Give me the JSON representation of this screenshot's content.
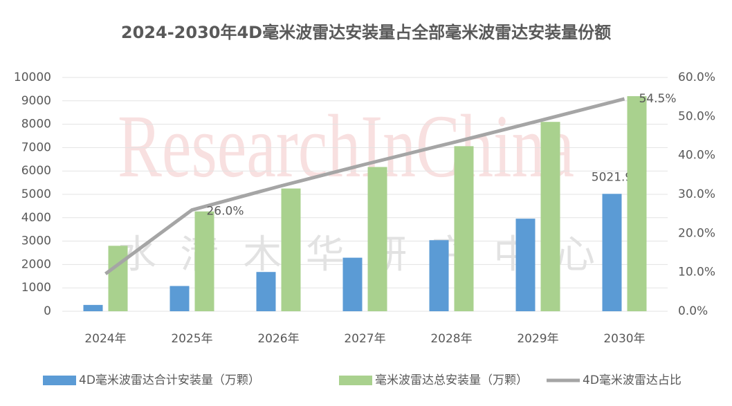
{
  "chart_data": {
    "type": "bar",
    "title": "2024-2030年4D毫米波雷达安装量占全部毫米波雷达安装量份额",
    "watermark": [
      "ResearchInChina",
      "水清木华研究中心"
    ],
    "categories": [
      "2024年",
      "2025年",
      "2026年",
      "2027年",
      "2028年",
      "2029年",
      "2030年"
    ],
    "series": [
      {
        "name": "4D毫米波雷达合计安装量（万颗）",
        "type": "bar",
        "color": "#5b9bd5",
        "values": [
          270,
          1080,
          1680,
          2290,
          3040,
          3960,
          5021.9
        ],
        "value_labels": [
          null,
          null,
          null,
          null,
          null,
          null,
          "5021.9"
        ]
      },
      {
        "name": "毫米波雷达总安装量（万颗）",
        "type": "bar",
        "color": "#a9d18e",
        "values": [
          2800,
          4270,
          5250,
          6170,
          7060,
          8100,
          9200
        ],
        "value_labels": [
          null,
          null,
          null,
          null,
          null,
          null,
          null
        ]
      },
      {
        "name": "4D毫米波雷达占比",
        "type": "line",
        "axis": "y2",
        "color": "#a5a5a5",
        "values": [
          9.6,
          26.0,
          32.0,
          37.7,
          43.2,
          48.8,
          54.5
        ],
        "value_labels": [
          null,
          "26.0%",
          null,
          null,
          null,
          null,
          "54.5%"
        ]
      }
    ],
    "ylim": [
      0,
      10000
    ],
    "yticks": [
      0,
      1000,
      2000,
      3000,
      4000,
      5000,
      6000,
      7000,
      8000,
      9000,
      10000
    ],
    "y2lim": [
      0,
      60
    ],
    "y2ticks": [
      {
        "value": 0,
        "label": "0.0%"
      },
      {
        "value": 10,
        "label": "10.0%"
      },
      {
        "value": 20,
        "label": "20.0%"
      },
      {
        "value": 30,
        "label": "30.0%"
      },
      {
        "value": 40,
        "label": "40.0%"
      },
      {
        "value": 50,
        "label": "50.0%"
      },
      {
        "value": 60,
        "label": "60.0%"
      }
    ],
    "grid": true,
    "legend": "bottom"
  }
}
